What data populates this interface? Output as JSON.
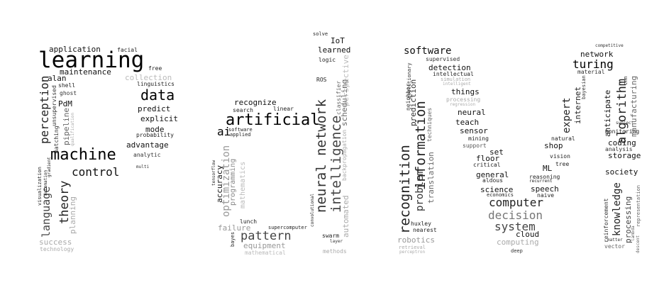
{
  "words": {
    "learning": "learning",
    "machine": "machine",
    "data": "data",
    "control": "control",
    "perception": "perception",
    "theory": "theory",
    "language": "language",
    "application": "application",
    "facial": "facial",
    "free": "free",
    "maintenance": "maintenance",
    "alan": "alan",
    "shell": "shell",
    "ghost": "ghost",
    "collection": "collection",
    "linguistics": "linguistics",
    "pdm": "PdM",
    "unsupervised": "unsupervised",
    "predict": "predict",
    "explicit": "explicit",
    "mode": "mode",
    "probability": "probability",
    "advantage": "advantage",
    "analytic": "analytic",
    "multi": "multi",
    "pipeline": "pipeline",
    "matching": "matching",
    "qualification": "qualification",
    "visualization": "visualization",
    "automation": "automation",
    "gradient": "gradient",
    "planning": "planning",
    "success": "success",
    "technology": "technology",
    "artificial": "artificial",
    "ai": "ai",
    "recognize": "recognize",
    "search": "search",
    "linear": "linear",
    "software_small": "software",
    "applied": "applied",
    "accuracy": "accuracy",
    "tensorflow": "tensorflow",
    "optimization": "optimization",
    "programming": "programming",
    "mathematics": "mathematics",
    "pattern": "pattern",
    "failure": "failure",
    "lunch": "lunch",
    "equipment": "equipment",
    "mathematical": "mathematical",
    "supercomputer": "supercomputer",
    "bayes": "bayes",
    "convolutional": "convolutional",
    "solve": "solve",
    "iot": "IoT",
    "learned": "learned",
    "logic": "logic",
    "ros": "ROS",
    "neural_network": "neural network",
    "intelligence": "intelligence",
    "scheduling": "scheduling",
    "classifier": "classifier",
    "perspective": "perspective",
    "backpropagation": "backpropagation",
    "automated": "automated",
    "swarm": "swarm",
    "layer": "layer",
    "methods": "methods",
    "software": "software",
    "supervised": "supervised",
    "detection": "detection",
    "intellectual": "intellectual",
    "simulation": "simulation",
    "intelligent": "intelligent",
    "things": "things",
    "processing_small": "processing",
    "regression": "regression",
    "neural": "neural",
    "teach": "teach",
    "sensor": "sensor",
    "mining": "mining",
    "support": "support",
    "set": "set",
    "floor": "floor",
    "critical": "critical",
    "general": "general",
    "aldous": "aldous",
    "science": "science",
    "economics": "economics",
    "computer": "computer",
    "decision": "decision",
    "system": "system",
    "cloud": "cloud",
    "computing": "computing",
    "deep": "deep",
    "huxley": "huxley",
    "nearest": "nearest",
    "robotics": "robotics",
    "retrieval": "retrieval",
    "perceptron": "perceptron",
    "recognition": "recognition",
    "information": "information",
    "problem": "problem",
    "prediction": "prediction",
    "neighbor": "neighbor",
    "evolutionary": "evolutionary",
    "translation": "translation",
    "techniques": "techniques",
    "shop": "shop",
    "natural": "natural",
    "vision": "vision",
    "tree": "tree",
    "ml": "ML",
    "reasoning": "reasoning",
    "recurrent": "recurrent",
    "speech": "speech",
    "naive": "naive",
    "expert": "expert",
    "internet": "internet",
    "bayesian": "bayesian",
    "competitive": "competitive",
    "network": "network",
    "turing": "turing",
    "material": "material",
    "algorithm": "algorithm",
    "anticipate": "anticipate",
    "cnn": "cnn",
    "subject": "subject",
    "manufacturing": "manufacturing",
    "monitoring": "monitoring",
    "coding": "coding",
    "analysis": "analysis",
    "storage": "storage",
    "society": "society",
    "knowledge": "knowledge",
    "processing": "processing",
    "reinforcement": "reinforcement",
    "matter": "matter",
    "vector": "vector",
    "descent": "descent",
    "representation": "representation",
    "lambda": "lambda"
  }
}
